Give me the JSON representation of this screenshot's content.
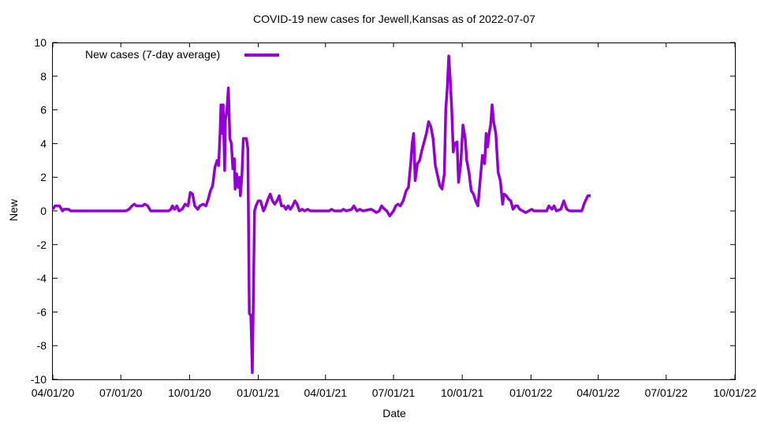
{
  "chart_data": {
    "type": "line",
    "title": "COVID-19 new cases for Jewell,Kansas as of 2022-07-07",
    "xlabel": "Date",
    "ylabel": "New",
    "xlim": [
      "2020-04-01",
      "2022-10-01"
    ],
    "ylim": [
      -10,
      10
    ],
    "y_ticks": [
      -10,
      -8,
      -6,
      -4,
      -2,
      0,
      2,
      4,
      6,
      8,
      10
    ],
    "x_ticks": [
      "04/01/20",
      "07/01/20",
      "10/01/20",
      "01/01/21",
      "04/01/21",
      "07/01/21",
      "10/01/21",
      "01/01/22",
      "04/01/22",
      "07/01/22",
      "10/01/22"
    ],
    "x_tick_dates": [
      "2020-04-01",
      "2020-07-01",
      "2020-10-01",
      "2021-01-01",
      "2021-04-01",
      "2021-07-01",
      "2021-10-01",
      "2022-01-01",
      "2022-04-01",
      "2022-07-01",
      "2022-10-01"
    ],
    "grid": false,
    "legend_position": "top-left",
    "colors": {
      "series": "#9400d3"
    },
    "series": [
      {
        "name": "New cases (7-day average)",
        "points": [
          [
            "2020-04-01",
            0.1
          ],
          [
            "2020-04-04",
            0.3
          ],
          [
            "2020-04-10",
            0.3
          ],
          [
            "2020-04-14",
            0.0
          ],
          [
            "2020-04-16",
            0.1
          ],
          [
            "2020-04-22",
            0.1
          ],
          [
            "2020-04-25",
            0.0
          ],
          [
            "2020-05-20",
            0.0
          ],
          [
            "2020-06-20",
            0.0
          ],
          [
            "2020-07-08",
            0.0
          ],
          [
            "2020-07-12",
            0.1
          ],
          [
            "2020-07-16",
            0.3
          ],
          [
            "2020-07-19",
            0.4
          ],
          [
            "2020-07-22",
            0.3
          ],
          [
            "2020-07-30",
            0.3
          ],
          [
            "2020-08-02",
            0.4
          ],
          [
            "2020-08-06",
            0.3
          ],
          [
            "2020-08-10",
            0.0
          ],
          [
            "2020-08-20",
            0.0
          ],
          [
            "2020-09-03",
            0.0
          ],
          [
            "2020-09-06",
            0.1
          ],
          [
            "2020-09-08",
            0.3
          ],
          [
            "2020-09-11",
            0.1
          ],
          [
            "2020-09-14",
            0.3
          ],
          [
            "2020-09-17",
            0.0
          ],
          [
            "2020-09-21",
            0.1
          ],
          [
            "2020-09-25",
            0.4
          ],
          [
            "2020-09-29",
            0.3
          ],
          [
            "2020-10-02",
            1.1
          ],
          [
            "2020-10-05",
            1.0
          ],
          [
            "2020-10-08",
            0.3
          ],
          [
            "2020-10-12",
            0.1
          ],
          [
            "2020-10-15",
            0.3
          ],
          [
            "2020-10-19",
            0.4
          ],
          [
            "2020-10-23",
            0.3
          ],
          [
            "2020-10-26",
            0.7
          ],
          [
            "2020-10-29",
            1.2
          ],
          [
            "2020-11-01",
            1.5
          ],
          [
            "2020-11-04",
            2.6
          ],
          [
            "2020-11-07",
            3.0
          ],
          [
            "2020-11-09",
            2.7
          ],
          [
            "2020-11-11",
            4.8
          ],
          [
            "2020-11-12",
            6.3
          ],
          [
            "2020-11-14",
            4.6
          ],
          [
            "2020-11-15",
            6.3
          ],
          [
            "2020-11-17",
            2.4
          ],
          [
            "2020-11-18",
            5.4
          ],
          [
            "2020-11-20",
            6.0
          ],
          [
            "2020-11-22",
            7.3
          ],
          [
            "2020-11-24",
            4.3
          ],
          [
            "2020-11-26",
            4.0
          ],
          [
            "2020-11-28",
            2.5
          ],
          [
            "2020-11-30",
            3.1
          ],
          [
            "2020-12-01",
            1.3
          ],
          [
            "2020-12-03",
            2.2
          ],
          [
            "2020-12-05",
            1.4
          ],
          [
            "2020-12-07",
            2.0
          ],
          [
            "2020-12-08",
            0.9
          ],
          [
            "2020-12-10",
            2.0
          ],
          [
            "2020-12-12",
            4.3
          ],
          [
            "2020-12-16",
            4.3
          ],
          [
            "2020-12-18",
            3.7
          ],
          [
            "2020-12-20",
            -6.1
          ],
          [
            "2020-12-22",
            -6.2
          ],
          [
            "2020-12-24",
            -9.6
          ],
          [
            "2020-12-27",
            0.0
          ],
          [
            "2020-12-29",
            0.3
          ],
          [
            "2021-01-01",
            0.6
          ],
          [
            "2021-01-04",
            0.6
          ],
          [
            "2021-01-06",
            0.3
          ],
          [
            "2021-01-08",
            0.0
          ],
          [
            "2021-01-11",
            0.3
          ],
          [
            "2021-01-14",
            0.7
          ],
          [
            "2021-01-17",
            1.0
          ],
          [
            "2021-01-20",
            0.6
          ],
          [
            "2021-01-23",
            0.4
          ],
          [
            "2021-01-26",
            0.6
          ],
          [
            "2021-01-29",
            0.9
          ],
          [
            "2021-02-01",
            0.3
          ],
          [
            "2021-02-04",
            0.3
          ],
          [
            "2021-02-07",
            0.1
          ],
          [
            "2021-02-10",
            0.3
          ],
          [
            "2021-02-13",
            0.1
          ],
          [
            "2021-02-16",
            0.3
          ],
          [
            "2021-02-19",
            0.6
          ],
          [
            "2021-02-22",
            0.4
          ],
          [
            "2021-02-25",
            0.0
          ],
          [
            "2021-03-01",
            0.1
          ],
          [
            "2021-03-04",
            0.0
          ],
          [
            "2021-03-08",
            0.1
          ],
          [
            "2021-03-12",
            0.0
          ],
          [
            "2021-04-06",
            0.0
          ],
          [
            "2021-04-09",
            0.1
          ],
          [
            "2021-04-13",
            0.0
          ],
          [
            "2021-04-22",
            0.0
          ],
          [
            "2021-04-25",
            0.1
          ],
          [
            "2021-04-29",
            0.0
          ],
          [
            "2021-05-06",
            0.1
          ],
          [
            "2021-05-09",
            0.3
          ],
          [
            "2021-05-13",
            0.0
          ],
          [
            "2021-05-17",
            0.1
          ],
          [
            "2021-05-21",
            0.0
          ],
          [
            "2021-06-01",
            0.1
          ],
          [
            "2021-06-05",
            0.0
          ],
          [
            "2021-06-08",
            -0.1
          ],
          [
            "2021-06-12",
            0.0
          ],
          [
            "2021-06-15",
            0.3
          ],
          [
            "2021-06-19",
            0.1
          ],
          [
            "2021-06-22",
            0.0
          ],
          [
            "2021-06-26",
            -0.3
          ],
          [
            "2021-07-01",
            0.0
          ],
          [
            "2021-07-04",
            0.3
          ],
          [
            "2021-07-07",
            0.4
          ],
          [
            "2021-07-10",
            0.3
          ],
          [
            "2021-07-14",
            0.6
          ],
          [
            "2021-07-18",
            1.2
          ],
          [
            "2021-07-21",
            1.4
          ],
          [
            "2021-07-24",
            2.8
          ],
          [
            "2021-07-26",
            4.0
          ],
          [
            "2021-07-28",
            4.6
          ],
          [
            "2021-07-30",
            1.8
          ],
          [
            "2021-08-02",
            2.8
          ],
          [
            "2021-08-05",
            3.0
          ],
          [
            "2021-08-08",
            3.6
          ],
          [
            "2021-08-11",
            4.1
          ],
          [
            "2021-08-14",
            4.6
          ],
          [
            "2021-08-17",
            5.3
          ],
          [
            "2021-08-20",
            5.0
          ],
          [
            "2021-08-23",
            4.3
          ],
          [
            "2021-08-26",
            2.7
          ],
          [
            "2021-08-29",
            2.1
          ],
          [
            "2021-09-01",
            1.5
          ],
          [
            "2021-09-04",
            1.3
          ],
          [
            "2021-09-07",
            2.2
          ],
          [
            "2021-09-09",
            6.0
          ],
          [
            "2021-09-11",
            7.3
          ],
          [
            "2021-09-13",
            9.2
          ],
          [
            "2021-09-15",
            7.8
          ],
          [
            "2021-09-17",
            6.0
          ],
          [
            "2021-09-19",
            3.5
          ],
          [
            "2021-09-21",
            4.0
          ],
          [
            "2021-09-24",
            4.1
          ],
          [
            "2021-09-26",
            1.7
          ],
          [
            "2021-09-29",
            2.8
          ],
          [
            "2021-10-02",
            5.1
          ],
          [
            "2021-10-05",
            4.3
          ],
          [
            "2021-10-07",
            3.0
          ],
          [
            "2021-10-10",
            2.3
          ],
          [
            "2021-10-13",
            1.2
          ],
          [
            "2021-10-16",
            1.0
          ],
          [
            "2021-10-19",
            0.6
          ],
          [
            "2021-10-22",
            0.3
          ],
          [
            "2021-10-25",
            1.8
          ],
          [
            "2021-10-28",
            3.3
          ],
          [
            "2021-10-31",
            2.8
          ],
          [
            "2021-11-02",
            4.6
          ],
          [
            "2021-11-04",
            3.8
          ],
          [
            "2021-11-06",
            4.6
          ],
          [
            "2021-11-08",
            5.1
          ],
          [
            "2021-11-10",
            6.3
          ],
          [
            "2021-11-12",
            5.3
          ],
          [
            "2021-11-15",
            4.6
          ],
          [
            "2021-11-18",
            2.3
          ],
          [
            "2021-11-21",
            1.8
          ],
          [
            "2021-11-24",
            0.4
          ],
          [
            "2021-11-26",
            1.0
          ],
          [
            "2021-11-29",
            0.9
          ],
          [
            "2021-12-02",
            0.7
          ],
          [
            "2021-12-05",
            0.6
          ],
          [
            "2021-12-08",
            0.1
          ],
          [
            "2021-12-11",
            0.3
          ],
          [
            "2021-12-14",
            0.3
          ],
          [
            "2021-12-17",
            0.1
          ],
          [
            "2021-12-21",
            0.0
          ],
          [
            "2021-12-25",
            -0.1
          ],
          [
            "2021-12-29",
            0.0
          ],
          [
            "2022-01-02",
            0.1
          ],
          [
            "2022-01-05",
            0.0
          ],
          [
            "2022-01-15",
            0.0
          ],
          [
            "2022-01-22",
            0.0
          ],
          [
            "2022-01-25",
            0.3
          ],
          [
            "2022-01-29",
            0.1
          ],
          [
            "2022-02-01",
            0.3
          ],
          [
            "2022-02-04",
            0.0
          ],
          [
            "2022-02-10",
            0.1
          ],
          [
            "2022-02-14",
            0.6
          ],
          [
            "2022-02-18",
            0.1
          ],
          [
            "2022-02-22",
            0.0
          ],
          [
            "2022-03-05",
            0.0
          ],
          [
            "2022-03-10",
            0.0
          ],
          [
            "2022-03-13",
            0.4
          ],
          [
            "2022-03-18",
            0.9
          ],
          [
            "2022-03-22",
            0.9
          ]
        ]
      }
    ]
  }
}
